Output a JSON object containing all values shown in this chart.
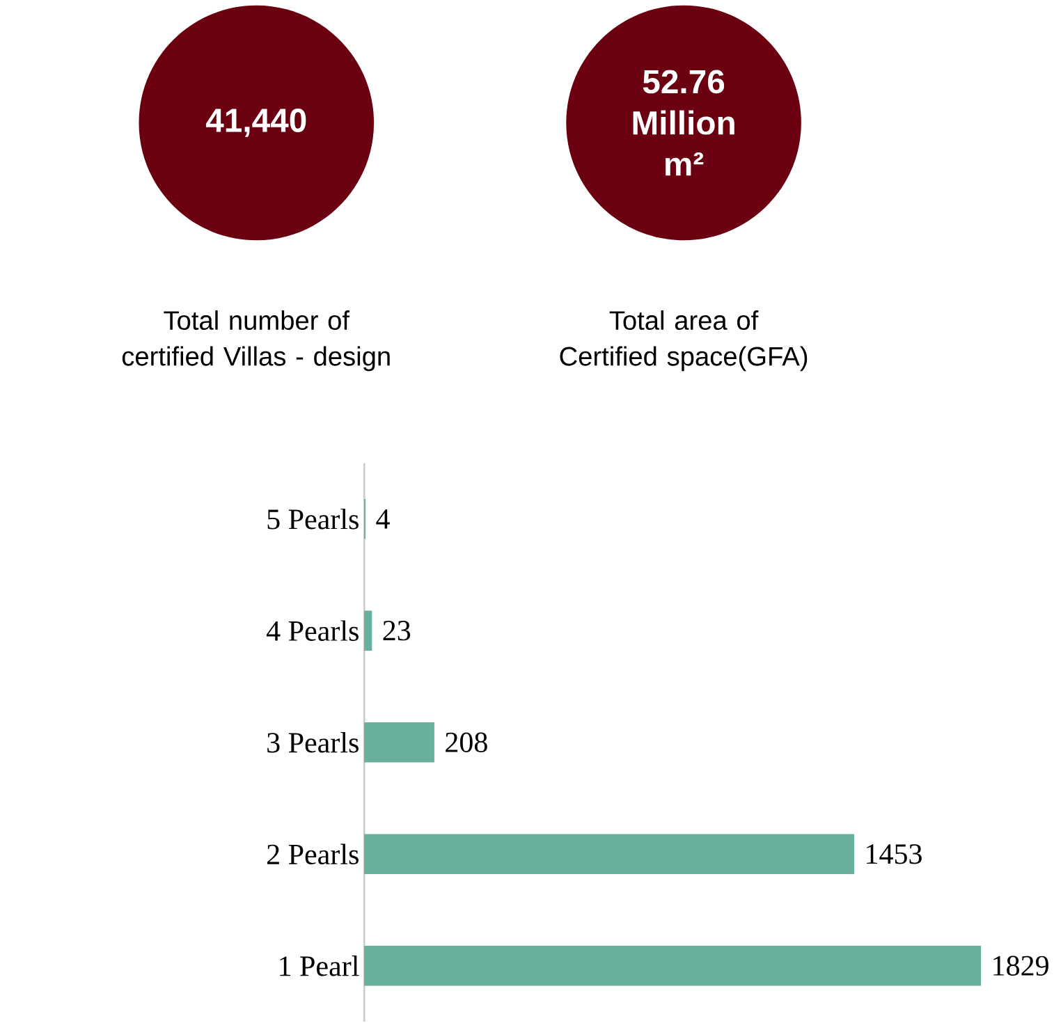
{
  "chart_data": [
    {
      "type": "other",
      "color": "#6b0010",
      "annotations": [
        "41,440",
        "Total number of certified Villas - design",
        "52.76 Million m²",
        "Total area of Certified space(GFA)"
      ]
    },
    {
      "type": "bar",
      "orientation": "horizontal",
      "categories": [
        "5 Pearls",
        "4 Pearls",
        "3 Pearls",
        "2 Pearls",
        "1 Pearl"
      ],
      "values": [
        4,
        23,
        208,
        1453,
        1829
      ],
      "color": "#66b09d",
      "data_labels": true,
      "tick_labels": "y"
    }
  ]
}
